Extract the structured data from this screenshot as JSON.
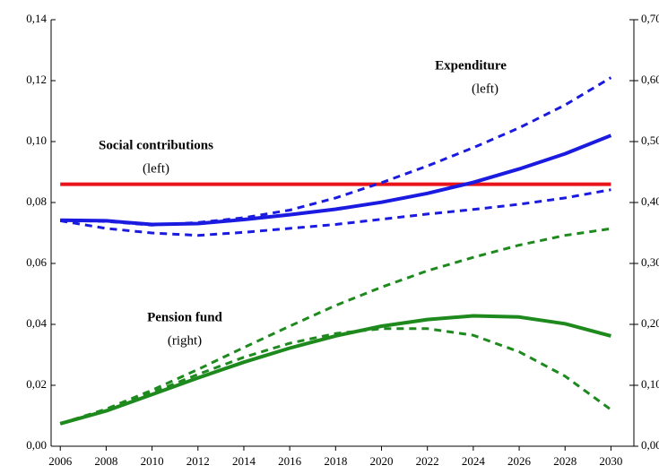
{
  "chart_data": {
    "type": "line",
    "x": [
      2006,
      2008,
      2010,
      2012,
      2014,
      2016,
      2018,
      2020,
      2022,
      2024,
      2026,
      2028,
      2030
    ],
    "xlim": [
      2005.6,
      2031
    ],
    "xticks": [
      2006,
      2008,
      2010,
      2012,
      2014,
      2016,
      2018,
      2020,
      2022,
      2024,
      2026,
      2028,
      2030
    ],
    "ylim": [
      0,
      0.14
    ],
    "yticks": [
      {
        "value": 0,
        "label": "0,00"
      },
      {
        "value": 0.02,
        "label": "0,02"
      },
      {
        "value": 0.04,
        "label": "0,04"
      },
      {
        "value": 0.06,
        "label": "0,06"
      },
      {
        "value": 0.08,
        "label": "0,08"
      },
      {
        "value": 0.1,
        "label": "0,10"
      },
      {
        "value": 0.12,
        "label": "0,12"
      },
      {
        "value": 0.14,
        "label": "0,14"
      }
    ],
    "y2lim": [
      0,
      0.7
    ],
    "y2ticks": [
      {
        "value": 0,
        "label": "0,00"
      },
      {
        "value": 0.1,
        "label": "0,10"
      },
      {
        "value": 0.2,
        "label": "0,20"
      },
      {
        "value": 0.3,
        "label": "0,30"
      },
      {
        "value": 0.4,
        "label": "0,40"
      },
      {
        "value": 0.5,
        "label": "0,50"
      },
      {
        "value": 0.6,
        "label": "0,60"
      },
      {
        "value": 0.7,
        "label": "0,70"
      }
    ],
    "series": [
      {
        "color": "#e8141a",
        "style": "solid",
        "axis": "y",
        "values": [
          0.086,
          0.086,
          0.086,
          0.086,
          0.086,
          0.086,
          0.086,
          0.086,
          0.086,
          0.086,
          0.086,
          0.086,
          0.086
        ]
      },
      {
        "color": "#1a1ae0",
        "style": "dashed",
        "axis": "y",
        "values": [
          0.0742,
          0.0738,
          0.0726,
          0.0734,
          0.075,
          0.0775,
          0.0815,
          0.0865,
          0.092,
          0.098,
          0.1045,
          0.112,
          0.121
        ]
      },
      {
        "color": "#1a1ae0",
        "style": "dashed",
        "axis": "y",
        "values": [
          0.074,
          0.0715,
          0.07,
          0.0692,
          0.0702,
          0.0715,
          0.0728,
          0.0745,
          0.0762,
          0.0777,
          0.0794,
          0.0815,
          0.0842
        ]
      },
      {
        "color": "#1a1ae0",
        "style": "solid",
        "axis": "y",
        "values": [
          0.0742,
          0.074,
          0.0728,
          0.0731,
          0.0744,
          0.076,
          0.0778,
          0.0801,
          0.083,
          0.0866,
          0.091,
          0.096,
          0.102
        ]
      },
      {
        "color": "#1e8a1e",
        "style": "dashed",
        "axis": "y2",
        "values": [
          0.037,
          0.061,
          0.092,
          0.126,
          0.162,
          0.197,
          0.231,
          0.261,
          0.288,
          0.31,
          0.33,
          0.346,
          0.357
        ]
      },
      {
        "color": "#1e8a1e",
        "style": "dashed",
        "axis": "y2",
        "values": [
          0.037,
          0.06,
          0.088,
          0.118,
          0.146,
          0.169,
          0.185,
          0.193,
          0.193,
          0.182,
          0.155,
          0.115,
          0.06
        ]
      },
      {
        "color": "#1e8a1e",
        "style": "solid",
        "axis": "y2",
        "values": [
          0.037,
          0.058,
          0.085,
          0.112,
          0.138,
          0.161,
          0.181,
          0.197,
          0.208,
          0.214,
          0.212,
          0.201,
          0.181
        ]
      }
    ],
    "annotations": [
      "Expenditure",
      "(left)",
      "Social contributions",
      "(left)",
      "Pension fund",
      "(right)"
    ]
  }
}
